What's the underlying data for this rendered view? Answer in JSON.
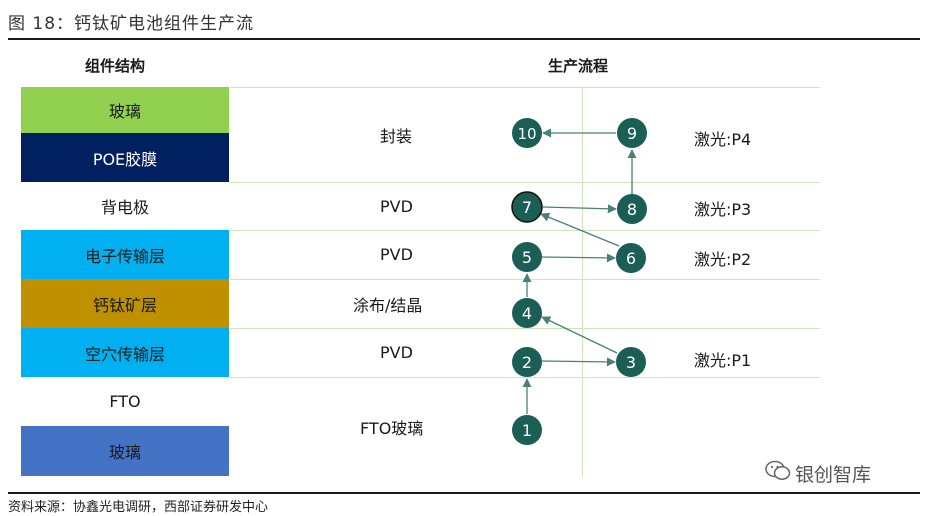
{
  "figure_title": "图 18：钙钛矿电池组件生产流",
  "headers": {
    "structure": "组件结构",
    "process": "生产流程"
  },
  "layers": [
    {
      "label": "玻璃",
      "color": "#92d050",
      "text_color": "#1a1a1a"
    },
    {
      "label": "POE胶膜",
      "color": "#002060",
      "text_color": "#ffffff"
    },
    {
      "label": "背电极",
      "color": "#ffffff",
      "text_color": "#1a1a1a"
    },
    {
      "label": "电子传输层",
      "color": "#00b0f0",
      "text_color": "#1a1a1a"
    },
    {
      "label": "钙钛矿层",
      "color": "#bf9000",
      "text_color": "#1a1a1a"
    },
    {
      "label": "空穴传输层",
      "color": "#00b0f0",
      "text_color": "#1a1a1a"
    },
    {
      "label": "FTO",
      "color": "#ffffff",
      "text_color": "#1a1a1a"
    },
    {
      "label": "玻璃",
      "color": "#4472c4",
      "text_color": "#1a1a1a"
    }
  ],
  "processes": [
    "封装",
    "PVD",
    "PVD",
    "涂布/结晶",
    "PVD",
    "FTO玻璃"
  ],
  "lasers": [
    "激光:P4",
    "激光:P3",
    "激光:P2",
    "激光:P1"
  ],
  "steps": [
    "1",
    "2",
    "3",
    "4",
    "5",
    "6",
    "7",
    "8",
    "9",
    "10"
  ],
  "colors": {
    "node": "#1a5e56",
    "arrow": "#4a7f7a",
    "grid": "#cfe6b8"
  },
  "source": "资料来源：协鑫光电调研，西部证券研发中心",
  "watermark": "银创智库"
}
